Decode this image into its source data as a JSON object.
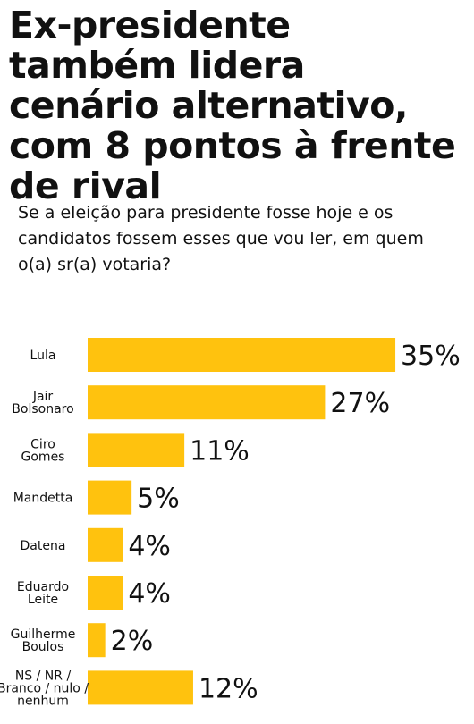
{
  "headline": "Ex-presidente também lidera cenário alternativo, com 8 pontos à frente de rival",
  "question": "Se a eleição para presidente fosse hoje e os candidatos fossem esses que vou ler, em quem o(a) sr(a) votaria?",
  "colors": {
    "bar": "#FFC20E",
    "text": "#111111"
  },
  "chart_data": {
    "type": "bar",
    "orientation": "horizontal",
    "categories": [
      [
        "Lula"
      ],
      [
        "Jair",
        "Bolsonaro"
      ],
      [
        "Ciro",
        "Gomes"
      ],
      [
        "Mandetta"
      ],
      [
        "Datena"
      ],
      [
        "Eduardo",
        "Leite"
      ],
      [
        "Guilherme",
        "Boulos"
      ],
      [
        "NS / NR /",
        "Branco / nulo /",
        "nenhum"
      ]
    ],
    "values": [
      35,
      27,
      11,
      5,
      4,
      4,
      2,
      12
    ],
    "value_labels": [
      "35%",
      "27%",
      "11%",
      "5%",
      "4%",
      "4%",
      "2%",
      "12%"
    ],
    "unit": "%",
    "grid": false,
    "legend": "none"
  }
}
